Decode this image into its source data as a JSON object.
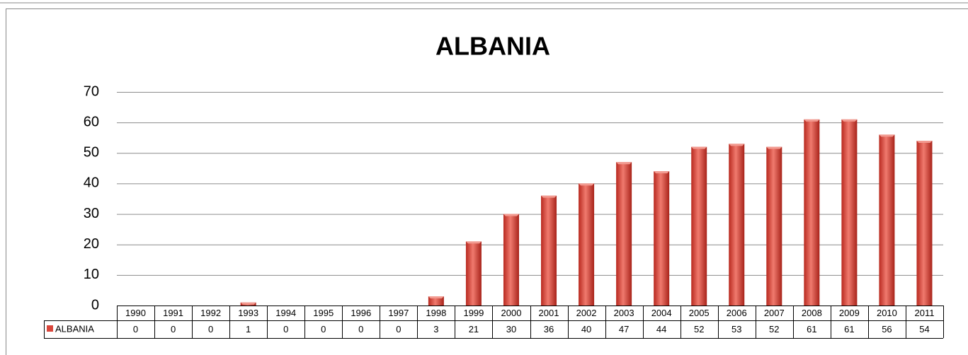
{
  "chart_data": {
    "type": "bar",
    "title": "ALBANIA",
    "categories": [
      "1990",
      "1991",
      "1992",
      "1993",
      "1994",
      "1995",
      "1996",
      "1997",
      "1998",
      "1999",
      "2000",
      "2001",
      "2002",
      "2003",
      "2004",
      "2005",
      "2006",
      "2007",
      "2008",
      "2009",
      "2010",
      "2011"
    ],
    "series": [
      {
        "name": "ALBANIA",
        "color": "#d9463b",
        "values": [
          0,
          0,
          0,
          1,
          0,
          0,
          0,
          0,
          3,
          21,
          30,
          36,
          40,
          47,
          44,
          52,
          53,
          52,
          61,
          61,
          56,
          54
        ]
      }
    ],
    "ylim": [
      0,
      70
    ],
    "yticks": [
      0,
      10,
      20,
      30,
      40,
      50,
      60,
      70
    ],
    "grid": true
  }
}
